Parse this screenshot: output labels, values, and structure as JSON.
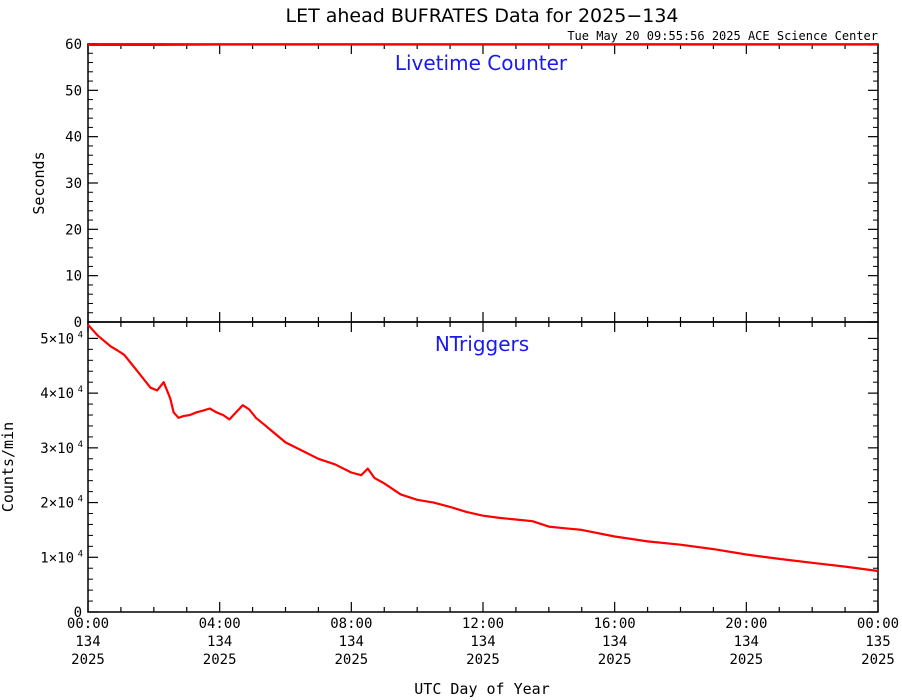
{
  "title": "LET ahead BUFRATES Data for 2025−134",
  "subtitle": "Tue May 20 09:55:56 2025 ACE Science Center",
  "xlabel": "UTC Day of Year",
  "colors": {
    "series": "#ff0000",
    "annotation": "#1a1aee",
    "axes": "#000000"
  },
  "x_ticks": [
    {
      "time": "00:00",
      "doy": "134",
      "year": "2025"
    },
    {
      "time": "04:00",
      "doy": "134",
      "year": "2025"
    },
    {
      "time": "08:00",
      "doy": "134",
      "year": "2025"
    },
    {
      "time": "12:00",
      "doy": "134",
      "year": "2025"
    },
    {
      "time": "16:00",
      "doy": "134",
      "year": "2025"
    },
    {
      "time": "20:00",
      "doy": "134",
      "year": "2025"
    },
    {
      "time": "00:00",
      "doy": "135",
      "year": "2025"
    }
  ],
  "chart_data": [
    {
      "type": "line",
      "annotation": "Livetime Counter",
      "ylabel": "Seconds",
      "xlim": [
        0,
        24
      ],
      "ylim": [
        0,
        60
      ],
      "y_ticks": [
        {
          "value": 0,
          "label": "0"
        },
        {
          "value": 10,
          "label": "10"
        },
        {
          "value": 20,
          "label": "20"
        },
        {
          "value": 30,
          "label": "30"
        },
        {
          "value": 40,
          "label": "40"
        },
        {
          "value": 50,
          "label": "50"
        },
        {
          "value": 60,
          "label": "60"
        }
      ],
      "x_hours": [
        0,
        2,
        4,
        6,
        8,
        10,
        12,
        14,
        16,
        18,
        20,
        22,
        24
      ],
      "values": [
        59.8,
        59.8,
        59.9,
        59.9,
        59.9,
        59.9,
        59.9,
        59.9,
        59.9,
        59.9,
        59.9,
        59.9,
        59.9
      ]
    },
    {
      "type": "line",
      "annotation": "NTriggers",
      "ylabel": "Counts/min",
      "xlim": [
        0,
        24
      ],
      "ylim": [
        0,
        53000
      ],
      "y_ticks": [
        {
          "value": 0,
          "label": "0"
        },
        {
          "value": 10000,
          "label": "1×10",
          "exp": "4"
        },
        {
          "value": 20000,
          "label": "2×10",
          "exp": "4"
        },
        {
          "value": 30000,
          "label": "3×10",
          "exp": "4"
        },
        {
          "value": 40000,
          "label": "4×10",
          "exp": "4"
        },
        {
          "value": 50000,
          "label": "5×10",
          "exp": "4"
        }
      ],
      "x_hours": [
        0,
        0.15,
        0.3,
        0.5,
        0.7,
        0.9,
        1.1,
        1.3,
        1.5,
        1.7,
        1.9,
        2.1,
        2.3,
        2.5,
        2.6,
        2.75,
        2.9,
        3.1,
        3.3,
        3.5,
        3.7,
        3.9,
        4.1,
        4.3,
        4.5,
        4.7,
        4.9,
        5.1,
        5.3,
        5.6,
        6.0,
        6.5,
        7.0,
        7.5,
        8.0,
        8.3,
        8.5,
        8.7,
        9.0,
        9.5,
        10.0,
        10.5,
        11.0,
        11.5,
        12.0,
        12.5,
        13.0,
        13.5,
        14.0,
        14.5,
        15.0,
        16.0,
        17.0,
        18.0,
        19.0,
        20.0,
        21.0,
        22.0,
        23.0,
        24.0
      ],
      "values": [
        52500,
        51500,
        50500,
        49500,
        48500,
        47800,
        47000,
        45500,
        44000,
        42500,
        41000,
        40500,
        42000,
        39000,
        36500,
        35500,
        35800,
        36000,
        36500,
        36800,
        37200,
        36500,
        36000,
        35200,
        36500,
        37800,
        37000,
        35500,
        34500,
        33000,
        31000,
        29500,
        28000,
        27000,
        25500,
        25000,
        26200,
        24500,
        23500,
        21500,
        20500,
        20000,
        19200,
        18300,
        17600,
        17200,
        16900,
        16600,
        15600,
        15300,
        15000,
        13800,
        12900,
        12300,
        11500,
        10500,
        9700,
        9000,
        8300,
        7500
      ]
    }
  ]
}
